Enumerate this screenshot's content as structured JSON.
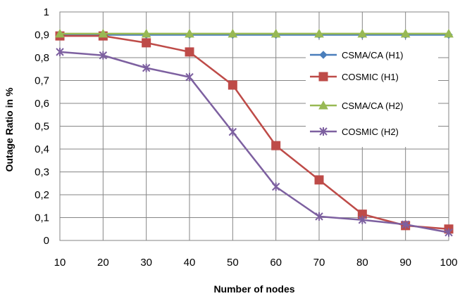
{
  "chart_data": {
    "type": "line",
    "xlabel": "Number of nodes",
    "ylabel": "Outage Ratio  in %",
    "x": [
      10,
      20,
      30,
      40,
      50,
      60,
      70,
      80,
      90,
      100
    ],
    "xticks": [
      "10",
      "20",
      "30",
      "40",
      "50",
      "60",
      "70",
      "80",
      "90",
      "100"
    ],
    "yticks": [
      "0",
      "0,1",
      "0,2",
      "0,3",
      "0,4",
      "0,5",
      "0,6",
      "0,7",
      "0,8",
      "0,9",
      "1"
    ],
    "ylim": [
      0,
      1
    ],
    "grid": true,
    "legend_position": "right",
    "series": [
      {
        "name": "CSMA/CA  (H1)",
        "color": "#4a7ebb",
        "marker": "diamond",
        "values": [
          0.9,
          0.9,
          0.9,
          0.9,
          0.9,
          0.9,
          0.9,
          0.9,
          0.9,
          0.9
        ]
      },
      {
        "name": "COSMIC (H1)",
        "color": "#be4b48",
        "marker": "square",
        "values": [
          0.895,
          0.895,
          0.865,
          0.825,
          0.68,
          0.415,
          0.265,
          0.115,
          0.065,
          0.05
        ]
      },
      {
        "name": "CSMA/CA  (H2)",
        "color": "#98b954",
        "marker": "triangle",
        "values": [
          0.905,
          0.905,
          0.905,
          0.905,
          0.905,
          0.905,
          0.905,
          0.905,
          0.905,
          0.905
        ]
      },
      {
        "name": "COSMIC (H2)",
        "color": "#7d60a0",
        "marker": "x-star",
        "values": [
          0.825,
          0.81,
          0.755,
          0.715,
          0.475,
          0.235,
          0.105,
          0.09,
          0.07,
          0.035
        ]
      }
    ]
  }
}
